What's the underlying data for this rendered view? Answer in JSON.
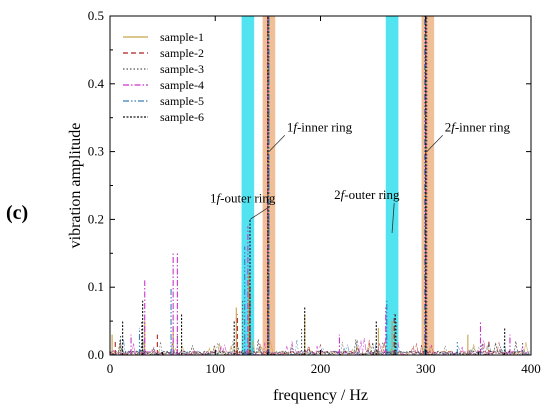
{
  "panel_label": "(c)",
  "chart_data": {
    "type": "line",
    "xlabel": "frequency / Hz",
    "ylabel": "vibration amplitude",
    "xlim": [
      0,
      400
    ],
    "ylim": [
      0,
      0.5
    ],
    "x_ticks": [
      0,
      100,
      200,
      300,
      400
    ],
    "y_ticks": [
      0.0,
      0.1,
      0.2,
      0.3,
      0.4,
      0.5
    ],
    "y_tick_labels": [
      "0.0",
      "0.1",
      "0.2",
      "0.3",
      "0.4",
      "0.5"
    ],
    "grid": false,
    "legend_position": "top-left",
    "series": [
      {
        "name": "sample-1",
        "color": "#c8a24a",
        "dash": "",
        "peaks": [
          [
            2,
            0.03
          ],
          [
            33,
            0.05
          ],
          [
            60,
            0.04
          ],
          [
            120,
            0.07
          ],
          [
            132,
            0.12
          ],
          [
            150,
            0.5
          ],
          [
            185,
            0.06
          ],
          [
            255,
            0.04
          ],
          [
            268,
            0.05
          ],
          [
            300,
            0.5
          ],
          [
            340,
            0.03
          ]
        ]
      },
      {
        "name": "sample-2",
        "color": "#b22222",
        "dash": "5,3",
        "peaks": [
          [
            5,
            0.02
          ],
          [
            45,
            0.03
          ],
          [
            121,
            0.06
          ],
          [
            133,
            0.1
          ],
          [
            150,
            0.5
          ],
          [
            270,
            0.06
          ],
          [
            300,
            0.5
          ],
          [
            360,
            0.02
          ]
        ]
      },
      {
        "name": "sample-3",
        "color": "#555555",
        "dash": "1.5,2",
        "peaks": [
          [
            10,
            0.03
          ],
          [
            30,
            0.05
          ],
          [
            64,
            0.03
          ],
          [
            126,
            0.08
          ],
          [
            151,
            0.5
          ],
          [
            182,
            0.04
          ],
          [
            272,
            0.05
          ],
          [
            301,
            0.5
          ],
          [
            392,
            0.02
          ]
        ]
      },
      {
        "name": "sample-4",
        "color": "#cc33cc",
        "dash": "6,2,1.5,2",
        "peaks": [
          [
            20,
            0.03
          ],
          [
            33,
            0.11
          ],
          [
            60,
            0.15
          ],
          [
            64,
            0.15
          ],
          [
            131,
            0.19
          ],
          [
            150,
            0.5
          ],
          [
            218,
            0.03
          ],
          [
            262,
            0.07
          ],
          [
            300,
            0.5
          ],
          [
            352,
            0.05
          ],
          [
            380,
            0.03
          ]
        ]
      },
      {
        "name": "sample-5",
        "color": "#3a7fb5",
        "dash": "6,2,1.5,2,1.5,2",
        "peaks": [
          [
            28,
            0.04
          ],
          [
            58,
            0.1
          ],
          [
            128,
            0.16
          ],
          [
            151,
            0.5
          ],
          [
            263,
            0.08
          ],
          [
            299,
            0.5
          ],
          [
            330,
            0.02
          ]
        ]
      },
      {
        "name": "sample-6",
        "color": "#111111",
        "dash": "2,1.5",
        "peaks": [
          [
            12,
            0.05
          ],
          [
            31,
            0.08
          ],
          [
            68,
            0.06
          ],
          [
            118,
            0.05
          ],
          [
            133,
            0.2
          ],
          [
            150,
            0.5
          ],
          [
            185,
            0.07
          ],
          [
            253,
            0.05
          ],
          [
            271,
            0.06
          ],
          [
            300,
            0.5
          ],
          [
            375,
            0.04
          ]
        ]
      }
    ],
    "bands": [
      {
        "x_range": [
          125,
          137
        ],
        "color": "#3ee0ee"
      },
      {
        "x_range": [
          145,
          157
        ],
        "color": "#f0b88a"
      },
      {
        "x_range": [
          262,
          274
        ],
        "color": "#3ee0ee"
      },
      {
        "x_range": [
          296,
          308
        ],
        "color": "#f0b88a"
      }
    ],
    "annotations": [
      {
        "prefix": "1",
        "italic": "f",
        "suffix": "-outer ring",
        "at": [
          133,
          0.2
        ],
        "text_at": [
          95,
          0.225
        ]
      },
      {
        "prefix": "1",
        "italic": "f",
        "suffix": "-inner ring",
        "at": [
          151,
          0.3
        ],
        "text_at": [
          168,
          0.33
        ]
      },
      {
        "prefix": "2",
        "italic": "f",
        "suffix": "-outer ring",
        "at": [
          268,
          0.18
        ],
        "text_at": [
          213,
          0.23
        ]
      },
      {
        "prefix": "2",
        "italic": "f",
        "suffix": "-inner ring",
        "at": [
          301,
          0.3
        ],
        "text_at": [
          318,
          0.33
        ]
      }
    ]
  }
}
